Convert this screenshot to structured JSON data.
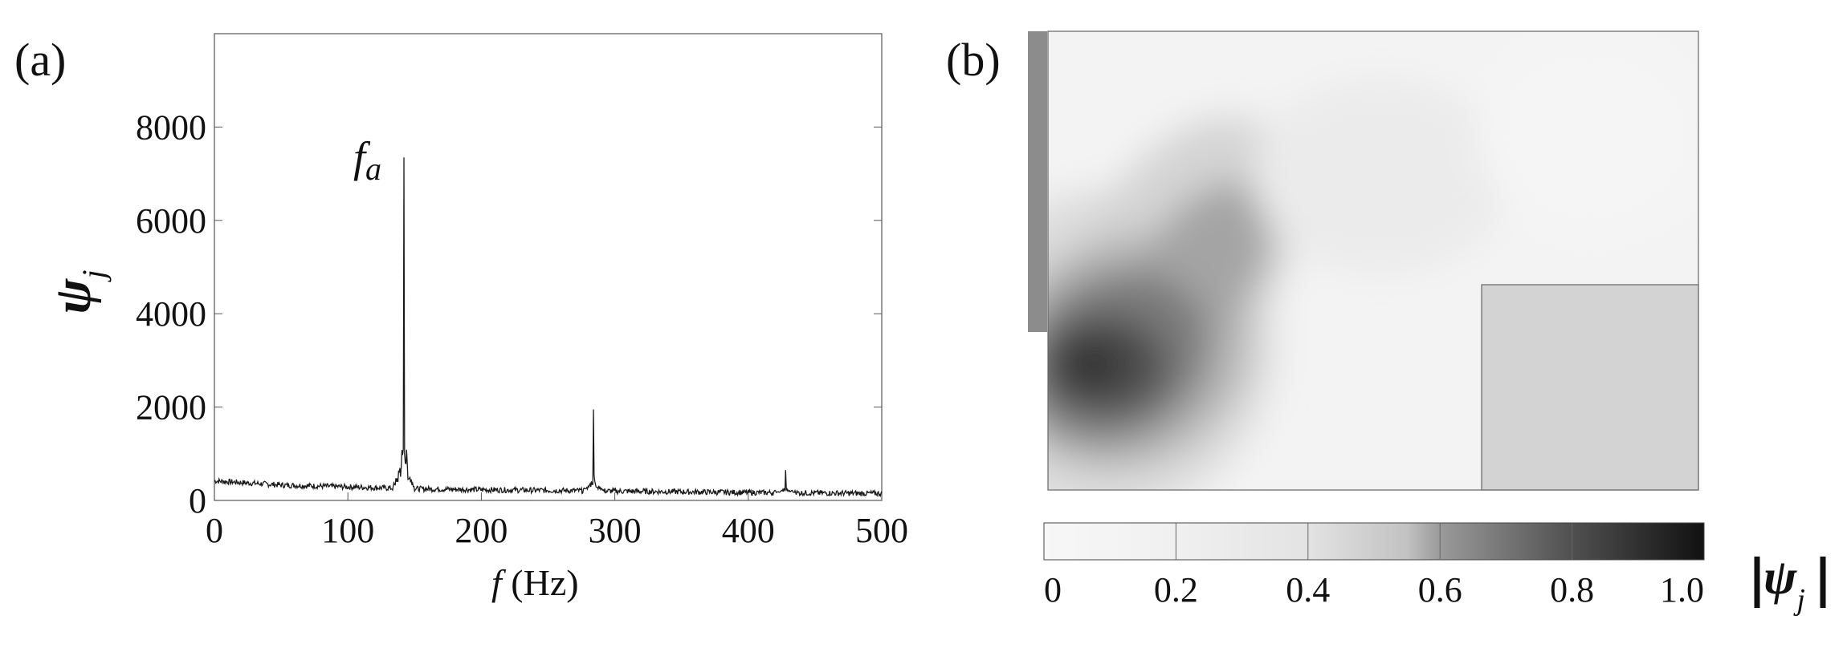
{
  "panel_a": {
    "label": "(a)",
    "chart_data": {
      "type": "line",
      "xlabel_var": "f",
      "xlabel_unit": "(Hz)",
      "ylabel_base": "ψ",
      "ylabel_sub": "j",
      "annotation_base": "f",
      "annotation_sub": "a",
      "annotation_x": 142,
      "xlim": [
        0,
        500
      ],
      "ylim": [
        0,
        10000
      ],
      "xticks": [
        0,
        100,
        200,
        300,
        400,
        500
      ],
      "yticks": [
        0,
        2000,
        4000,
        6000,
        8000
      ],
      "grid": false,
      "line_color": "#1a1a1a",
      "peaks": [
        {
          "x": 142,
          "y": 7350
        },
        {
          "x": 284,
          "y": 1950
        },
        {
          "x": 428,
          "y": 650
        }
      ],
      "baseline": [
        {
          "x": 0,
          "y": 420
        },
        {
          "x": 50,
          "y": 330
        },
        {
          "x": 100,
          "y": 290
        },
        {
          "x": 150,
          "y": 250
        },
        {
          "x": 200,
          "y": 230
        },
        {
          "x": 300,
          "y": 200
        },
        {
          "x": 400,
          "y": 170
        },
        {
          "x": 500,
          "y": 150
        }
      ]
    }
  },
  "panel_b": {
    "label": "(b)",
    "colorbar": {
      "ticks": [
        "0",
        "0.2",
        "0.4",
        "0.6",
        "0.8",
        "1.0"
      ],
      "label_base": "ψ",
      "label_sub": "j",
      "range": [
        0,
        1
      ]
    },
    "peak_value": 0.85,
    "colors": {
      "side_bar": "#8c8c8c",
      "block": "#d3d3d3",
      "max": "#111111",
      "min": "#f7f7f7"
    }
  }
}
